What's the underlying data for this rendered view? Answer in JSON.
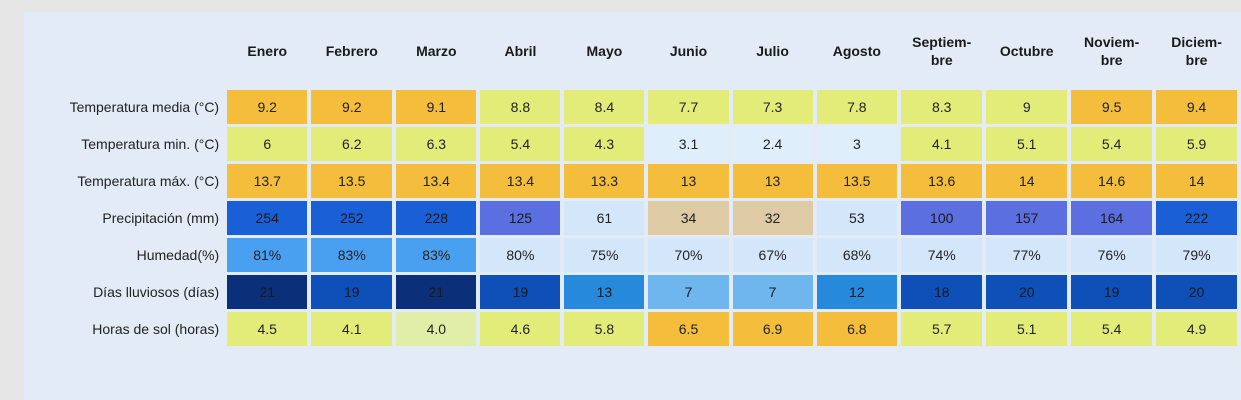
{
  "months": [
    "Enero",
    "Febrero",
    "Marzo",
    "Abril",
    "Mayo",
    "Junio",
    "Julio",
    "Agosto",
    "Septiem-\nbre",
    "Octubre",
    "Noviem-\nbre",
    "Diciem-\nbre"
  ],
  "rows": [
    {
      "label": "Temperatura media (°C)",
      "values": [
        "9.2",
        "9.2",
        "9.1",
        "8.8",
        "8.4",
        "7.7",
        "7.3",
        "7.8",
        "8.3",
        "9",
        "9.5",
        "9.4"
      ],
      "colors": [
        "#f5bd3c",
        "#f5bd3c",
        "#f5bd3c",
        "#e3ec78",
        "#e3ec78",
        "#e3ec78",
        "#e3ec78",
        "#e3ec78",
        "#e3ec78",
        "#e3ec78",
        "#f5bd3c",
        "#f5bd3c"
      ],
      "text_colors": [
        "#222",
        "#222",
        "#222",
        "#222",
        "#222",
        "#222",
        "#222",
        "#222",
        "#222",
        "#222",
        "#222",
        "#222"
      ]
    },
    {
      "label": "Temperatura min. (°C)",
      "values": [
        "6",
        "6.2",
        "6.3",
        "5.4",
        "4.3",
        "3.1",
        "2.4",
        "3",
        "4.1",
        "5.1",
        "5.4",
        "5.9"
      ],
      "colors": [
        "#e3ec78",
        "#e3ec78",
        "#e3ec78",
        "#e3ec78",
        "#e3ec78",
        "#dfeefb",
        "#dfeefb",
        "#dfeefb",
        "#e3ec78",
        "#e3ec78",
        "#e3ec78",
        "#e3ec78"
      ],
      "text_colors": [
        "#222",
        "#222",
        "#222",
        "#222",
        "#222",
        "#222",
        "#222",
        "#222",
        "#222",
        "#222",
        "#222",
        "#222"
      ]
    },
    {
      "label": "Temperatura máx. (°C)",
      "values": [
        "13.7",
        "13.5",
        "13.4",
        "13.4",
        "13.3",
        "13",
        "13",
        "13.5",
        "13.6",
        "14",
        "14.6",
        "14"
      ],
      "colors": [
        "#f5bd3c",
        "#f5bd3c",
        "#f5bd3c",
        "#f5bd3c",
        "#f5bd3c",
        "#f5bd3c",
        "#f5bd3c",
        "#f5bd3c",
        "#f5bd3c",
        "#f5bd3c",
        "#f5bd3c",
        "#f5bd3c"
      ],
      "text_colors": [
        "#222",
        "#222",
        "#222",
        "#222",
        "#222",
        "#222",
        "#222",
        "#222",
        "#222",
        "#222",
        "#222",
        "#222"
      ]
    },
    {
      "label": "Precipitación (mm)",
      "values": [
        "254",
        "252",
        "228",
        "125",
        "61",
        "34",
        "32",
        "53",
        "100",
        "157",
        "164",
        "222"
      ],
      "colors": [
        "#1a5fd6",
        "#1a5fd6",
        "#1a5fd6",
        "#5b6fe0",
        "#d4e6fa",
        "#decba6",
        "#decba6",
        "#d4e6fa",
        "#5b6fe0",
        "#5b6fe0",
        "#5b6fe0",
        "#1a5fd6"
      ],
      "text_colors": [
        "#1a1a1a",
        "#1a1a1a",
        "#1a1a1a",
        "#1a1a1a",
        "#222",
        "#222",
        "#222",
        "#222",
        "#1a1a1a",
        "#1a1a1a",
        "#1a1a1a",
        "#1a1a1a"
      ]
    },
    {
      "label": "Humedad(%)",
      "values": [
        "81%",
        "83%",
        "83%",
        "80%",
        "75%",
        "70%",
        "67%",
        "68%",
        "74%",
        "77%",
        "76%",
        "79%"
      ],
      "colors": [
        "#4aa0f0",
        "#4aa0f0",
        "#4aa0f0",
        "#d4e6fa",
        "#d4e6fa",
        "#d4e6fa",
        "#d4e6fa",
        "#d4e6fa",
        "#d4e6fa",
        "#d4e6fa",
        "#d4e6fa",
        "#d4e6fa"
      ],
      "text_colors": [
        "#222",
        "#222",
        "#222",
        "#222",
        "#222",
        "#222",
        "#222",
        "#222",
        "#222",
        "#222",
        "#222",
        "#222"
      ]
    },
    {
      "label": "Días lluviosos (días)",
      "values": [
        "21",
        "19",
        "21",
        "19",
        "13",
        "7",
        "7",
        "12",
        "18",
        "20",
        "19",
        "20"
      ],
      "colors": [
        "#0b2f78",
        "#0f4fb8",
        "#0b2f78",
        "#0f4fb8",
        "#2689dc",
        "#6fb6ee",
        "#6fb6ee",
        "#2689dc",
        "#0f4fb8",
        "#0f4fb8",
        "#0f4fb8",
        "#0f4fb8"
      ],
      "text_colors": [
        "#1a1a1a",
        "#1a1a1a",
        "#1a1a1a",
        "#1a1a1a",
        "#1a1a1a",
        "#1a1a1a",
        "#1a1a1a",
        "#1a1a1a",
        "#1a1a1a",
        "#1a1a1a",
        "#1a1a1a",
        "#1a1a1a"
      ]
    },
    {
      "label": "Horas de sol (horas)",
      "values": [
        "4.5",
        "4.1",
        "4.0",
        "4.6",
        "5.8",
        "6.5",
        "6.9",
        "6.8",
        "5.7",
        "5.1",
        "5.4",
        "4.9"
      ],
      "colors": [
        "#e3ec78",
        "#e3ec78",
        "#e1eea8",
        "#e3ec78",
        "#e3ec78",
        "#f5bd3c",
        "#f5bd3c",
        "#f5bd3c",
        "#e3ec78",
        "#e3ec78",
        "#e3ec78",
        "#e3ec78"
      ],
      "text_colors": [
        "#222",
        "#222",
        "#222",
        "#222",
        "#222",
        "#222",
        "#222",
        "#222",
        "#222",
        "#222",
        "#222",
        "#222"
      ]
    }
  ]
}
